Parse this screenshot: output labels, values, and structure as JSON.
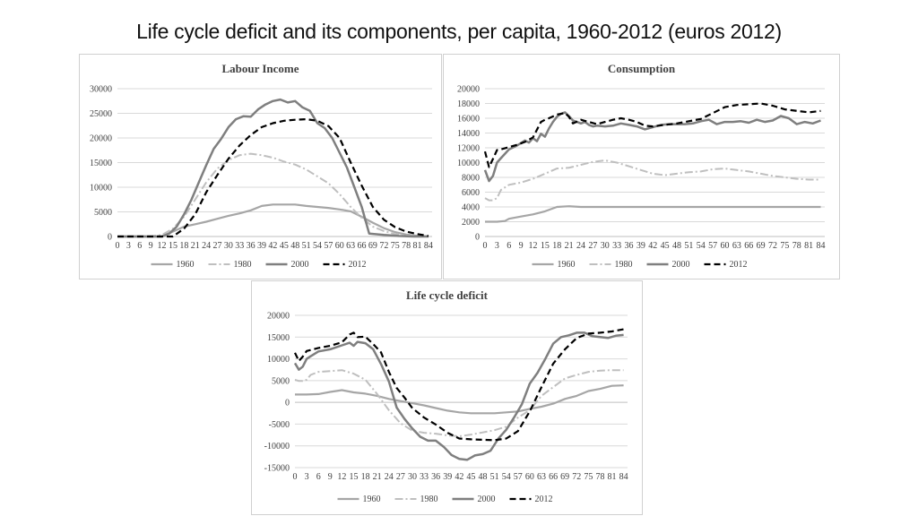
{
  "page": {
    "title": "Life cycle deficit and its components, per capita, 1960-2012 (euros 2012)"
  },
  "series_styles": [
    {
      "name": "1960",
      "color": "#a6a6a6",
      "dash": "",
      "width": 2.2
    },
    {
      "name": "1980",
      "color": "#bfbfbf",
      "dash": "9,3,2,3",
      "width": 2
    },
    {
      "name": "2000",
      "color": "#7f7f7f",
      "dash": "",
      "width": 2.5
    },
    {
      "name": "2012",
      "color": "#000000",
      "dash": "7,4",
      "width": 2.2
    }
  ],
  "chart_data": [
    {
      "id": "labour",
      "type": "line",
      "title": "Labour Income",
      "xlabel": "",
      "ylabel": "",
      "xlim": [
        0,
        85
      ],
      "ylim": [
        0,
        30000
      ],
      "yticks": [
        0,
        5000,
        10000,
        15000,
        20000,
        25000,
        30000
      ],
      "xticks": [
        0,
        3,
        6,
        9,
        12,
        15,
        18,
        21,
        24,
        27,
        30,
        33,
        36,
        39,
        42,
        45,
        48,
        51,
        54,
        57,
        60,
        63,
        66,
        69,
        72,
        75,
        78,
        81,
        84
      ],
      "grid": true,
      "legend": "bottom",
      "series": [
        {
          "name": "1960",
          "x": [
            0,
            12,
            15,
            18,
            21,
            24,
            27,
            30,
            33,
            36,
            39,
            42,
            45,
            48,
            51,
            54,
            57,
            60,
            63,
            66,
            69,
            72,
            75,
            78,
            81,
            84
          ],
          "values": [
            0,
            0,
            1000,
            2000,
            2500,
            3000,
            3600,
            4200,
            4700,
            5300,
            6200,
            6500,
            6500,
            6500,
            6200,
            6000,
            5800,
            5500,
            5100,
            4000,
            2800,
            1700,
            900,
            400,
            150,
            0
          ]
        },
        {
          "name": "1980",
          "x": [
            0,
            9,
            12,
            15,
            18,
            21,
            24,
            27,
            30,
            33,
            36,
            39,
            42,
            45,
            48,
            51,
            54,
            57,
            60,
            63,
            66,
            69,
            72,
            75,
            78,
            81,
            84
          ],
          "values": [
            0,
            50,
            300,
            1600,
            4000,
            7500,
            11000,
            13800,
            15500,
            16500,
            16800,
            16500,
            16000,
            15200,
            14600,
            13600,
            12200,
            10800,
            8600,
            6000,
            3800,
            2000,
            1100,
            500,
            200,
            50,
            0
          ]
        },
        {
          "name": "2000",
          "x": [
            0,
            12,
            14,
            16,
            18,
            20,
            22,
            24,
            26,
            28,
            30,
            32,
            34,
            36,
            38,
            40,
            42,
            44,
            46,
            48,
            50,
            52,
            54,
            56,
            58,
            60,
            62,
            64,
            66,
            68,
            72,
            76,
            80,
            84
          ],
          "values": [
            0,
            0,
            600,
            2000,
            4500,
            7500,
            11000,
            14500,
            17800,
            19800,
            22200,
            23800,
            24400,
            24300,
            25800,
            26800,
            27500,
            27800,
            27200,
            27500,
            26200,
            25500,
            23000,
            22000,
            20000,
            17000,
            14000,
            10000,
            6000,
            600,
            300,
            100,
            0,
            0
          ]
        },
        {
          "name": "2012",
          "x": [
            0,
            15,
            18,
            21,
            24,
            27,
            30,
            33,
            36,
            39,
            42,
            45,
            48,
            51,
            54,
            57,
            60,
            63,
            66,
            69,
            72,
            75,
            78,
            81,
            84
          ],
          "values": [
            0,
            0,
            1600,
            4500,
            9000,
            12500,
            15800,
            18500,
            20600,
            22200,
            23000,
            23500,
            23700,
            23800,
            23500,
            22400,
            20000,
            15000,
            10300,
            6000,
            3400,
            1900,
            1000,
            500,
            100
          ]
        }
      ]
    },
    {
      "id": "consumption",
      "type": "line",
      "title": "Consumption",
      "xlabel": "",
      "ylabel": "",
      "xlim": [
        0,
        85
      ],
      "ylim": [
        0,
        20000
      ],
      "yticks": [
        0,
        2000,
        4000,
        6000,
        8000,
        10000,
        12000,
        14000,
        16000,
        18000,
        20000
      ],
      "xticks": [
        0,
        3,
        6,
        9,
        12,
        15,
        18,
        21,
        24,
        27,
        30,
        33,
        36,
        39,
        42,
        45,
        48,
        51,
        54,
        57,
        60,
        63,
        66,
        69,
        72,
        75,
        78,
        81,
        84
      ],
      "grid": true,
      "legend": "bottom",
      "series": [
        {
          "name": "1960",
          "x": [
            0,
            3,
            5,
            6,
            9,
            12,
            15,
            18,
            21,
            24,
            27,
            30,
            33,
            36,
            39,
            42,
            45,
            48,
            51,
            54,
            57,
            60,
            63,
            66,
            69,
            72,
            75,
            78,
            81,
            84
          ],
          "values": [
            2000,
            2000,
            2100,
            2400,
            2700,
            3000,
            3400,
            4000,
            4100,
            4000,
            4000,
            4000,
            4000,
            4000,
            4000,
            4000,
            4000,
            4000,
            4000,
            4000,
            4000,
            4000,
            4000,
            4000,
            4000,
            4000,
            4000,
            4000,
            4000,
            4000
          ]
        },
        {
          "name": "1980",
          "x": [
            0,
            1,
            2,
            3,
            4,
            6,
            9,
            12,
            15,
            18,
            21,
            24,
            27,
            30,
            33,
            36,
            39,
            42,
            45,
            48,
            51,
            54,
            57,
            60,
            63,
            66,
            69,
            72,
            75,
            78,
            81,
            84
          ],
          "values": [
            5200,
            4900,
            4900,
            5200,
            6300,
            7000,
            7300,
            7800,
            8500,
            9200,
            9300,
            9700,
            10100,
            10300,
            10000,
            9500,
            9000,
            8500,
            8300,
            8500,
            8700,
            8800,
            9100,
            9200,
            9000,
            8800,
            8500,
            8200,
            8000,
            7800,
            7700,
            7700
          ]
        },
        {
          "name": "2000",
          "x": [
            0,
            1,
            2,
            3,
            4,
            5,
            6,
            8,
            10,
            11,
            12,
            13,
            14,
            15,
            16,
            17,
            18,
            19,
            20,
            21,
            22,
            23,
            24,
            25,
            26,
            27,
            28,
            30,
            32,
            34,
            36,
            38,
            40,
            42,
            44,
            46,
            48,
            50,
            52,
            54,
            56,
            58,
            60,
            62,
            64,
            66,
            68,
            70,
            72,
            74,
            76,
            78,
            80,
            82,
            84
          ],
          "values": [
            9000,
            7500,
            8200,
            10000,
            10600,
            11200,
            11800,
            12300,
            13000,
            12700,
            13300,
            12900,
            13900,
            13500,
            14600,
            15500,
            16200,
            16600,
            16800,
            16300,
            15700,
            15500,
            15300,
            15500,
            15100,
            14900,
            15000,
            14900,
            15000,
            15300,
            15100,
            14900,
            14500,
            14800,
            15100,
            15200,
            15200,
            15200,
            15300,
            15600,
            15800,
            15200,
            15500,
            15500,
            15600,
            15400,
            15800,
            15500,
            15700,
            16300,
            16000,
            15200,
            15500,
            15300,
            15700
          ]
        },
        {
          "name": "2012",
          "x": [
            0,
            1,
            2,
            3,
            4,
            6,
            8,
            10,
            12,
            14,
            15,
            16,
            18,
            20,
            21,
            22,
            24,
            26,
            28,
            30,
            32,
            34,
            36,
            38,
            40,
            42,
            45,
            48,
            51,
            54,
            57,
            60,
            63,
            66,
            69,
            72,
            75,
            78,
            81,
            84
          ],
          "values": [
            11500,
            9400,
            10500,
            11700,
            11800,
            12100,
            12400,
            12800,
            13400,
            15500,
            15800,
            16000,
            16500,
            16700,
            16200,
            15300,
            15800,
            15500,
            15200,
            15500,
            15800,
            16000,
            15800,
            15500,
            15000,
            14900,
            15100,
            15300,
            15600,
            15900,
            16700,
            17500,
            17800,
            17900,
            18000,
            17700,
            17200,
            17000,
            16800,
            17000
          ]
        }
      ]
    },
    {
      "id": "lcd",
      "type": "line",
      "title": "Life cycle deficit",
      "xlabel": "",
      "ylabel": "",
      "xlim": [
        0,
        85
      ],
      "ylim": [
        -15000,
        20000
      ],
      "yticks": [
        -15000,
        -10000,
        -5000,
        0,
        5000,
        10000,
        15000,
        20000
      ],
      "xticks": [
        0,
        3,
        6,
        9,
        12,
        15,
        18,
        21,
        24,
        27,
        30,
        33,
        36,
        39,
        42,
        45,
        48,
        51,
        54,
        57,
        60,
        63,
        66,
        69,
        72,
        75,
        78,
        81,
        84
      ],
      "grid": true,
      "legend": "bottom",
      "series": [
        {
          "name": "1960",
          "x": [
            0,
            3,
            6,
            9,
            12,
            15,
            18,
            21,
            24,
            27,
            30,
            33,
            36,
            39,
            42,
            45,
            48,
            51,
            54,
            57,
            60,
            63,
            66,
            69,
            72,
            75,
            78,
            81,
            84
          ],
          "values": [
            1800,
            1800,
            1900,
            2400,
            2800,
            2300,
            2000,
            1500,
            800,
            300,
            -200,
            -700,
            -1300,
            -1900,
            -2300,
            -2500,
            -2500,
            -2500,
            -2300,
            -2100,
            -1500,
            -1000,
            -300,
            800,
            1500,
            2600,
            3100,
            3800,
            3900
          ]
        },
        {
          "name": "1980",
          "x": [
            0,
            1,
            2,
            3,
            4,
            6,
            9,
            12,
            15,
            18,
            21,
            24,
            27,
            30,
            33,
            36,
            39,
            42,
            45,
            48,
            51,
            54,
            57,
            60,
            63,
            66,
            69,
            72,
            75,
            78,
            81,
            84
          ],
          "values": [
            5200,
            4900,
            4900,
            5200,
            6300,
            7000,
            7200,
            7400,
            6600,
            5200,
            1900,
            -1800,
            -4800,
            -6500,
            -7000,
            -7200,
            -7600,
            -7800,
            -7400,
            -6900,
            -6400,
            -5600,
            -3500,
            -1800,
            1500,
            3500,
            5500,
            6300,
            7000,
            7300,
            7400,
            7400
          ]
        },
        {
          "name": "2000",
          "x": [
            0,
            1,
            2,
            3,
            4,
            6,
            9,
            12,
            14,
            15,
            16,
            18,
            20,
            22,
            24,
            26,
            28,
            30,
            32,
            34,
            36,
            38,
            40,
            42,
            44,
            46,
            48,
            50,
            52,
            54,
            56,
            58,
            60,
            62,
            64,
            66,
            68,
            70,
            72,
            74,
            76,
            78,
            80,
            82,
            84
          ],
          "values": [
            9000,
            7500,
            8200,
            10000,
            10600,
            11700,
            12200,
            13100,
            13700,
            13000,
            13900,
            13600,
            12200,
            8800,
            4800,
            -1200,
            -3800,
            -6000,
            -7900,
            -8800,
            -8800,
            -10200,
            -12100,
            -13000,
            -13200,
            -12200,
            -11900,
            -11100,
            -8300,
            -6300,
            -3500,
            -400,
            4300,
            6800,
            10000,
            13500,
            15000,
            15400,
            16000,
            16000,
            15200,
            15000,
            14800,
            15300,
            15500
          ]
        },
        {
          "name": "2012",
          "x": [
            0,
            1,
            2,
            3,
            6,
            9,
            12,
            14,
            15,
            16,
            18,
            20,
            22,
            24,
            26,
            28,
            30,
            33,
            36,
            39,
            42,
            45,
            48,
            51,
            54,
            57,
            60,
            63,
            66,
            69,
            72,
            75,
            78,
            81,
            84
          ],
          "values": [
            11400,
            9500,
            10500,
            11800,
            12500,
            13000,
            13800,
            15600,
            16000,
            15000,
            15100,
            13400,
            11500,
            7000,
            3300,
            1100,
            -1300,
            -3500,
            -5100,
            -7000,
            -8300,
            -8500,
            -8600,
            -8700,
            -8300,
            -6600,
            -2100,
            3500,
            8900,
            12200,
            14800,
            15800,
            16000,
            16300,
            16800
          ]
        }
      ]
    }
  ]
}
